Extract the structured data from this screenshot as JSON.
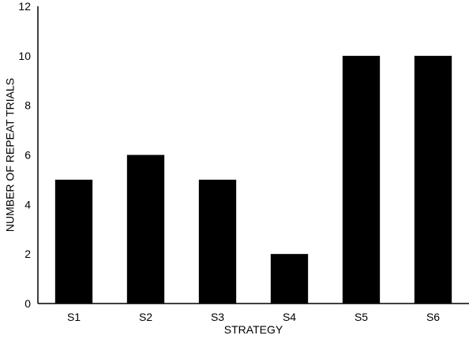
{
  "chart_data": {
    "type": "bar",
    "title": "",
    "xlabel": "STRATEGY",
    "ylabel": "NUMBER OF REPEAT TRIALS",
    "categories": [
      "S1",
      "S2",
      "S3",
      "S4",
      "S5",
      "S6"
    ],
    "values": [
      5,
      6,
      5,
      2,
      10,
      10
    ],
    "ylim": [
      0,
      12
    ],
    "yticks": [
      0,
      2,
      4,
      6,
      8,
      10,
      12
    ],
    "grid": false,
    "legend": "none",
    "bar_color": "#000000",
    "axis_color": "#000000"
  }
}
